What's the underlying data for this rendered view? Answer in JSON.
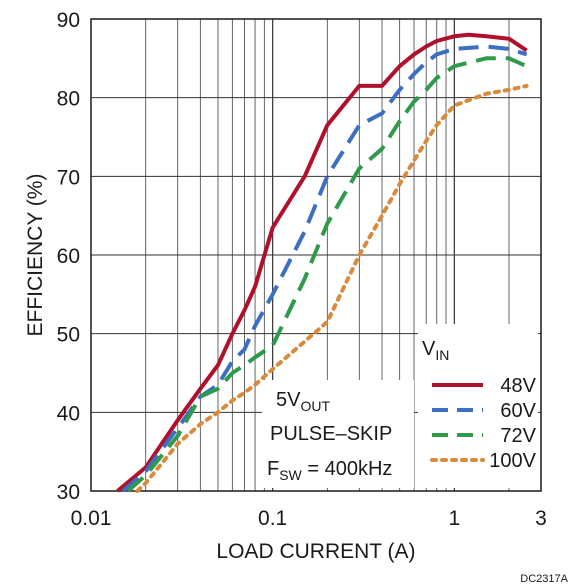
{
  "chart_data": {
    "type": "line",
    "xscale": "log",
    "xlim": [
      0.01,
      3
    ],
    "ylim": [
      30,
      90
    ],
    "xticks": [
      "0.01",
      "0.1",
      "1",
      "3"
    ],
    "yticks": [
      "30",
      "40",
      "50",
      "60",
      "70",
      "80",
      "90"
    ],
    "xlabel": "LOAD CURRENT (A)",
    "ylabel": "EFFICIENCY (%)",
    "grid": true,
    "legend_title_main": "V",
    "legend_title_sub": "IN",
    "legend_position": "bottom-right",
    "annotation": {
      "line1_main": "5V",
      "line1_sub": "OUT",
      "line2": "PULSE–SKIP",
      "line3_main": "F",
      "line3_sub": "SW",
      "line3_rest": " = 400kHz"
    },
    "figure_code": "DC2317A",
    "series": [
      {
        "name": "48V",
        "color": "#b0102c",
        "style": "solid",
        "x": [
          0.014,
          0.02,
          0.03,
          0.04,
          0.05,
          0.06,
          0.07,
          0.08,
          0.1,
          0.15,
          0.2,
          0.3,
          0.4,
          0.5,
          0.6,
          0.7,
          0.8,
          1.0,
          1.2,
          1.5,
          2.0,
          2.5
        ],
        "y": [
          30,
          33,
          39,
          43,
          46,
          50,
          53,
          56,
          63.5,
          70,
          76.5,
          81.5,
          81.5,
          84,
          85.5,
          86.5,
          87.2,
          87.8,
          88,
          87.8,
          87.5,
          86
        ]
      },
      {
        "name": "60V",
        "color": "#3b6fc4",
        "style": "dash",
        "x": [
          0.015,
          0.02,
          0.03,
          0.04,
          0.05,
          0.06,
          0.07,
          0.08,
          0.1,
          0.15,
          0.2,
          0.3,
          0.4,
          0.5,
          0.6,
          0.7,
          0.8,
          1.0,
          1.5,
          2.0,
          2.5
        ],
        "y": [
          30,
          32.5,
          38,
          42,
          43.5,
          46.5,
          48,
          51,
          55,
          63,
          70,
          76.5,
          78,
          81,
          83,
          84.5,
          85.5,
          86.2,
          86.5,
          86.2,
          85.5
        ]
      },
      {
        "name": "72V",
        "color": "#2e9a4a",
        "style": "dash",
        "x": [
          0.016,
          0.02,
          0.03,
          0.04,
          0.05,
          0.06,
          0.07,
          0.08,
          0.1,
          0.15,
          0.2,
          0.3,
          0.4,
          0.5,
          0.6,
          0.7,
          0.8,
          1.0,
          1.5,
          2.0,
          2.5
        ],
        "y": [
          30,
          32,
          37,
          42,
          43,
          45,
          46,
          47,
          48.5,
          57,
          64,
          71,
          73.5,
          77,
          79.5,
          81,
          82.5,
          84,
          85,
          85,
          84
        ]
      },
      {
        "name": "100V",
        "color": "#d98a3a",
        "style": "dot",
        "x": [
          0.018,
          0.02,
          0.03,
          0.04,
          0.05,
          0.06,
          0.07,
          0.08,
          0.1,
          0.15,
          0.2,
          0.3,
          0.4,
          0.5,
          0.6,
          0.7,
          0.8,
          1.0,
          1.5,
          2.0,
          2.5
        ],
        "y": [
          30,
          31,
          36,
          38.5,
          40,
          41.5,
          42.5,
          43.5,
          45.5,
          49,
          51.5,
          60,
          65,
          69,
          72,
          74.5,
          76.5,
          79,
          80.5,
          81,
          81.5
        ]
      }
    ]
  }
}
